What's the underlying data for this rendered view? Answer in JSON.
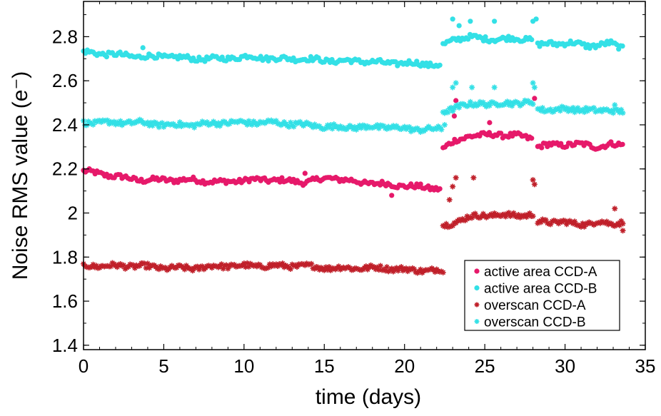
{
  "chart_data": {
    "type": "scatter",
    "xlabel": "time (days)",
    "ylabel": "Noise RMS value (e⁻)",
    "xlim": [
      0,
      35
    ],
    "ylim": [
      1.38,
      2.96
    ],
    "xticks": [
      0,
      5,
      10,
      15,
      20,
      25,
      30,
      35
    ],
    "yticks": [
      1.4,
      1.6,
      1.8,
      2,
      2.2,
      2.4,
      2.6,
      2.8
    ],
    "xtick_labels": [
      "0",
      "5",
      "10",
      "15",
      "20",
      "25",
      "30",
      "35"
    ],
    "ytick_labels": [
      "1.4",
      "1.6",
      "1.8",
      "2",
      "2.2",
      "2.4",
      "2.6",
      "2.8"
    ],
    "grid": false,
    "legend_position": "bottom-right",
    "series": [
      {
        "name": "active area CCD-A",
        "marker": "circle",
        "color": "#e6196a",
        "segments": [
          {
            "x_start": 0,
            "x_end": 22.3,
            "x_step": 0.12,
            "y": [
              2.19,
              2.17,
              2.15,
              2.15,
              2.15,
              2.14,
              2.15,
              2.15,
              2.14,
              2.16,
              2.14,
              2.13,
              2.12,
              2.11
            ]
          },
          {
            "x_start": 22.4,
            "x_end": 28.0,
            "x_step": 0.12,
            "y": [
              2.29,
              2.33,
              2.35,
              2.35,
              2.36,
              2.35,
              2.35,
              2.34
            ]
          },
          {
            "x_start": 28.3,
            "x_end": 33.6,
            "x_step": 0.12,
            "y": [
              2.3,
              2.31,
              2.31,
              2.31,
              2.31,
              2.3,
              2.31,
              2.31
            ]
          }
        ],
        "outliers": [
          [
            0.05,
            2.19
          ],
          [
            13.8,
            2.18
          ],
          [
            19.2,
            2.08
          ],
          [
            23.1,
            2.44
          ],
          [
            23.2,
            2.51
          ],
          [
            25.3,
            2.41
          ],
          [
            28.1,
            2.52
          ]
        ]
      },
      {
        "name": "active area CCD-B",
        "marker": "circle",
        "color": "#33e0e6",
        "segments": [
          {
            "x_start": 0,
            "x_end": 22.3,
            "x_step": 0.12,
            "y": [
              2.73,
              2.72,
              2.71,
              2.71,
              2.7,
              2.7,
              2.71,
              2.7,
              2.7,
              2.69,
              2.69,
              2.68,
              2.68,
              2.67
            ]
          },
          {
            "x_start": 22.4,
            "x_end": 28.0,
            "x_step": 0.12,
            "y": [
              2.76,
              2.79,
              2.8,
              2.79,
              2.79,
              2.79,
              2.79,
              2.79
            ]
          },
          {
            "x_start": 28.3,
            "x_end": 33.6,
            "x_step": 0.12,
            "y": [
              2.76,
              2.77,
              2.77,
              2.77,
              2.76,
              2.76,
              2.77,
              2.75
            ]
          }
        ],
        "outliers": [
          [
            3.7,
            2.75
          ],
          [
            23.0,
            2.88
          ],
          [
            23.4,
            2.85
          ],
          [
            24.1,
            2.87
          ],
          [
            25.6,
            2.87
          ],
          [
            28.0,
            2.87
          ],
          [
            28.2,
            2.88
          ]
        ]
      },
      {
        "name": "overscan CCD-A",
        "marker": "asterisk",
        "color": "#c0202a",
        "segments": [
          {
            "x_start": 0,
            "x_end": 22.3,
            "x_step": 0.1,
            "y": [
              1.76,
              1.76,
              1.76,
              1.75,
              1.75,
              1.76,
              1.76,
              1.76,
              1.76,
              1.75,
              1.75,
              1.75,
              1.74,
              1.74
            ]
          },
          {
            "x_start": 22.4,
            "x_end": 28.0,
            "x_step": 0.1,
            "y": [
              1.94,
              1.96,
              1.98,
              1.99,
              1.99,
              1.99,
              1.99,
              1.99
            ]
          },
          {
            "x_start": 28.3,
            "x_end": 33.6,
            "x_step": 0.1,
            "y": [
              1.96,
              1.96,
              1.96,
              1.95,
              1.95,
              1.96,
              1.95,
              1.96
            ]
          }
        ],
        "outliers": [
          [
            22.4,
            1.73
          ],
          [
            22.8,
            2.06
          ],
          [
            23.0,
            2.12
          ],
          [
            23.2,
            2.16
          ],
          [
            24.3,
            2.16
          ],
          [
            28.0,
            2.15
          ],
          [
            28.1,
            2.13
          ],
          [
            33.1,
            2.02
          ],
          [
            33.6,
            1.92
          ]
        ]
      },
      {
        "name": "overscan CCD-B",
        "marker": "asterisk",
        "color": "#33e0e6",
        "segments": [
          {
            "x_start": 0,
            "x_end": 22.3,
            "x_step": 0.1,
            "y": [
              2.41,
              2.41,
              2.41,
              2.4,
              2.4,
              2.41,
              2.41,
              2.41,
              2.4,
              2.39,
              2.39,
              2.39,
              2.38,
              2.38
            ]
          },
          {
            "x_start": 22.4,
            "x_end": 28.0,
            "x_step": 0.1,
            "y": [
              2.46,
              2.48,
              2.49,
              2.5,
              2.49,
              2.5,
              2.5,
              2.5
            ]
          },
          {
            "x_start": 28.3,
            "x_end": 33.6,
            "x_step": 0.1,
            "y": [
              2.47,
              2.47,
              2.47,
              2.47,
              2.47,
              2.46,
              2.47,
              2.46
            ]
          }
        ],
        "outliers": [
          [
            22.5,
            2.4
          ],
          [
            23.0,
            2.57
          ],
          [
            23.2,
            2.59
          ],
          [
            24.2,
            2.57
          ],
          [
            25.6,
            2.57
          ],
          [
            28.0,
            2.59
          ],
          [
            28.1,
            2.57
          ],
          [
            33.1,
            2.49
          ]
        ]
      }
    ],
    "legend": [
      {
        "label": "active area CCD-A",
        "series": 0
      },
      {
        "label": "active area CCD-B",
        "series": 1
      },
      {
        "label": "overscan CCD-A",
        "series": 2
      },
      {
        "label": "overscan CCD-B",
        "series": 3
      }
    ]
  }
}
